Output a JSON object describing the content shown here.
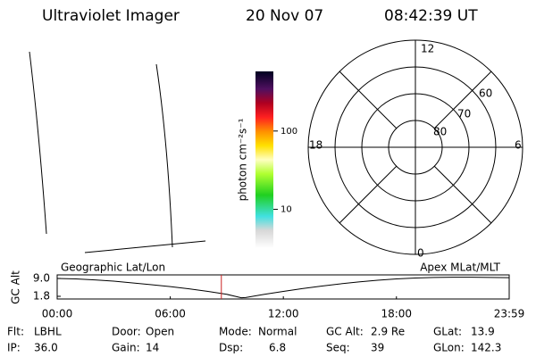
{
  "header": {
    "title": "Ultraviolet Imager",
    "date": "20 Nov 07",
    "time": "08:42:39 UT"
  },
  "colorbar": {
    "label": "photon cm⁻²s⁻¹",
    "log": true,
    "clim": [
      3.2,
      577
    ],
    "ticks": [
      10,
      100
    ]
  },
  "polar": {
    "mlt_labels": [
      "12",
      "6",
      "0",
      "18"
    ],
    "lat_labels": [
      "80",
      "70",
      "60"
    ]
  },
  "chart_data": {
    "type": "line",
    "ylabel": "GC Alt",
    "left_label": "Geographic Lat/Lon",
    "right_label": "Apex MLat/MLT",
    "x": [
      0,
      60,
      120,
      180,
      240,
      300,
      360,
      420,
      480,
      540,
      586,
      600,
      660,
      720,
      780,
      840,
      900,
      960,
      1020,
      1080,
      1140,
      1200,
      1260,
      1320,
      1380,
      1439
    ],
    "series": [
      {
        "color": "#000000",
        "values": [
          9.0,
          8.8,
          8.4,
          7.9,
          7.2,
          6.5,
          5.7,
          4.8,
          3.8,
          2.6,
          1.2,
          1.3,
          2.6,
          3.8,
          4.9,
          5.9,
          6.8,
          7.6,
          8.3,
          8.8,
          9.2,
          9.4,
          9.5,
          9.5,
          9.4,
          9.3
        ]
      }
    ],
    "marker": {
      "x": 522.65,
      "color": "#cc2222"
    },
    "xlim": [
      0,
      1439
    ],
    "xticks": [
      {
        "value": 0,
        "label": "00:00"
      },
      {
        "value": 360,
        "label": "06:00"
      },
      {
        "value": 720,
        "label": "12:00"
      },
      {
        "value": 1080,
        "label": "18:00"
      },
      {
        "value": 1439,
        "label": "23:59"
      }
    ],
    "ylim": [
      0.72,
      10.44
    ],
    "yticks": [
      {
        "value": 9.0,
        "label": "9.0"
      },
      {
        "value": 1.8,
        "label": "1.8"
      }
    ]
  },
  "info": [
    [
      {
        "label": "Flt:",
        "value": "LBHL"
      },
      {
        "label": "Door:",
        "value": "Open"
      },
      {
        "label": "Mode:",
        "value": "Normal"
      },
      {
        "label": "GC Alt:",
        "value": "2.9 Re"
      },
      {
        "label": "GLat:",
        "value": "13.9"
      }
    ],
    [
      {
        "label": "IP:",
        "value": "36.0"
      },
      {
        "label": "Gain:",
        "value": "14"
      },
      {
        "label": "Dsp:",
        "value": "6.8"
      },
      {
        "label": "Seq:",
        "value": "39"
      },
      {
        "label": "GLon:",
        "value": "142.3"
      }
    ]
  ]
}
